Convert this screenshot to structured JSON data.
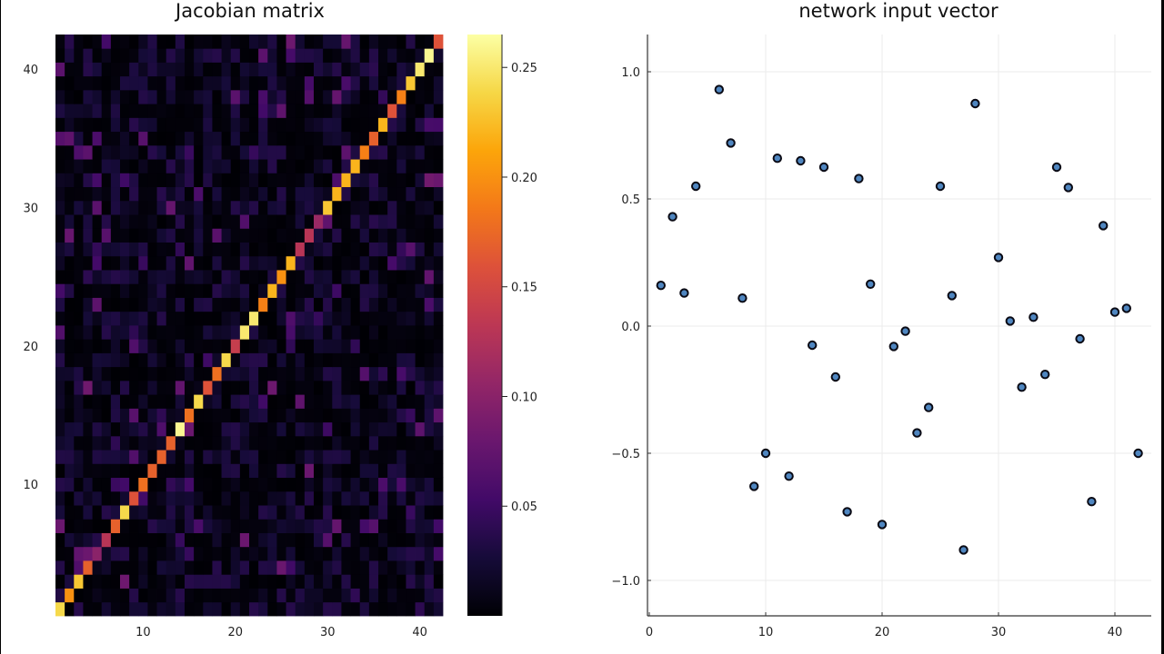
{
  "chart_data": [
    {
      "type": "heatmap",
      "title": "Jacobian matrix",
      "xlabel": "",
      "ylabel": "",
      "size": [
        42,
        42
      ],
      "xlim": [
        0.5,
        42.5
      ],
      "ylim": [
        0.5,
        42.5
      ],
      "xticks": [
        10,
        20,
        30,
        40
      ],
      "yticks": [
        10,
        20,
        30,
        40
      ],
      "colormap": "inferno",
      "colorbar": {
        "range": [
          0.0,
          0.265
        ],
        "ticks": [
          0.05,
          0.1,
          0.15,
          0.2,
          0.25
        ],
        "tick_labels": [
          "0.05",
          "0.10",
          "0.15",
          "0.20",
          "0.25"
        ]
      },
      "diagonal_values": [
        0.24,
        0.2,
        0.23,
        0.17,
        0.1,
        0.13,
        0.17,
        0.24,
        0.16,
        0.18,
        0.17,
        0.17,
        0.17,
        0.26,
        0.18,
        0.24,
        0.16,
        0.18,
        0.24,
        0.14,
        0.25,
        0.25,
        0.19,
        0.22,
        0.2,
        0.22,
        0.13,
        0.13,
        0.11,
        0.23,
        0.22,
        0.22,
        0.22,
        0.19,
        0.17,
        0.22,
        0.16,
        0.19,
        0.23,
        0.25,
        0.26,
        0.16
      ],
      "off_diagonal_range": [
        0.0,
        0.09
      ],
      "note": "Near-diagonal matrix; off-diagonal entries small (dark purple/black noise)"
    },
    {
      "type": "scatter",
      "title": "network input vector",
      "xlabel": "",
      "ylabel": "",
      "xlim": [
        -0.5,
        43.5
      ],
      "ylim": [
        -1.15,
        1.15
      ],
      "xticks": [
        0,
        10,
        20,
        30,
        40
      ],
      "yticks": [
        -1.0,
        -0.5,
        0.0,
        0.5,
        1.0
      ],
      "ytick_labels": [
        "−1.0",
        "−0.5",
        "0.0",
        "0.5",
        "1.0"
      ],
      "grid": true,
      "marker_color": "#4f86c0",
      "x": [
        1,
        2,
        3,
        4,
        5,
        6,
        7,
        8,
        9,
        10,
        11,
        12,
        13,
        14,
        15,
        16,
        17,
        18,
        19,
        20,
        21,
        22,
        23,
        24,
        25,
        26,
        27,
        28,
        29,
        30,
        31,
        32,
        33,
        34,
        35,
        36,
        37,
        38,
        39,
        40,
        41,
        42
      ],
      "values": [
        0.16,
        0.43,
        0.13,
        0.55,
        null,
        0.93,
        0.72,
        0.11,
        -0.63,
        -0.5,
        0.66,
        -0.59,
        0.65,
        -0.075,
        0.625,
        -0.2,
        -0.73,
        0.58,
        0.165,
        -0.78,
        -0.08,
        -0.02,
        -0.42,
        -0.32,
        0.55,
        0.12,
        -0.88,
        0.875,
        null,
        0.27,
        0.02,
        -0.24,
        0.035,
        -0.19,
        0.625,
        0.545,
        -0.05,
        -0.69,
        0.395,
        0.055,
        0.07,
        -0.5
      ]
    }
  ],
  "titles": {
    "left": "Jacobian matrix",
    "right": "network input vector"
  }
}
